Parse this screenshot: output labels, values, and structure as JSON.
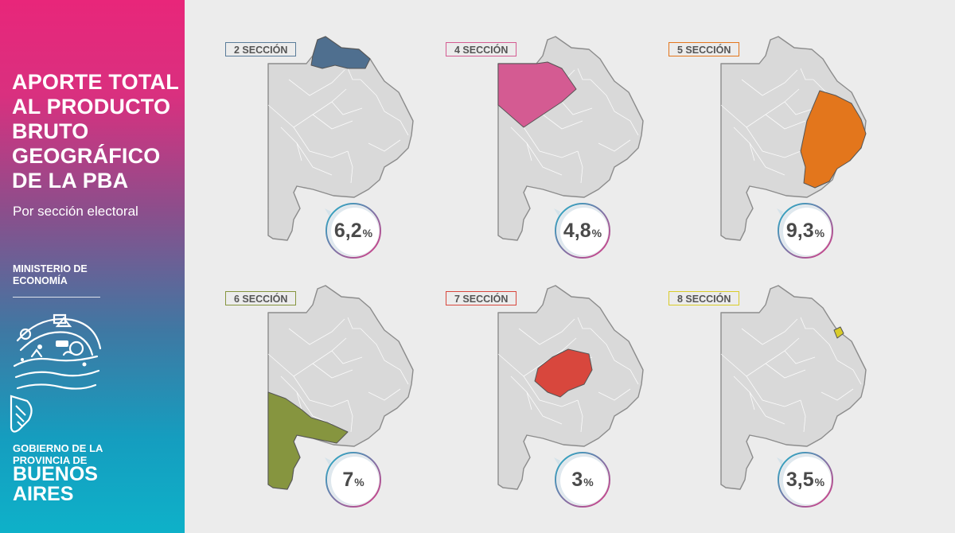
{
  "sidebar": {
    "title_lines": [
      "APORTE TOTAL",
      "AL PRODUCTO",
      "BRUTO",
      "GEOGRÁFICO",
      "DE LA PBA"
    ],
    "subtitle": "Por sección electoral",
    "ministry_lines": [
      "MINISTERIO DE",
      "ECONOMÍA"
    ],
    "government_lines": [
      "GOBIERNO DE LA",
      "PROVINCIA DE"
    ],
    "province_lines": [
      "BUENOS",
      "AIRES"
    ]
  },
  "sections": [
    {
      "label": "2 SECCIÓN",
      "value": "6,2",
      "unit": "%",
      "color": "#4f6f8f",
      "border": "#5a7c99",
      "region": "north"
    },
    {
      "label": "4 SECCIÓN",
      "value": "4,8",
      "unit": "%",
      "color": "#d45b92",
      "border": "#d45b92",
      "region": "northwest"
    },
    {
      "label": "5 SECCIÓN",
      "value": "9,3",
      "unit": "%",
      "color": "#e3761c",
      "border": "#e3761c",
      "region": "east"
    },
    {
      "label": "6 SECCIÓN",
      "value": "7",
      "unit": "%",
      "color": "#86953f",
      "border": "#86953f",
      "region": "southwest"
    },
    {
      "label": "7 SECCIÓN",
      "value": "3",
      "unit": "%",
      "color": "#d8473d",
      "border": "#d8473d",
      "region": "center"
    },
    {
      "label": "8 SECCIÓN",
      "value": "3,5",
      "unit": "%",
      "color": "#d9cc2a",
      "border": "#d9cc2a",
      "region": "laplata"
    }
  ]
}
